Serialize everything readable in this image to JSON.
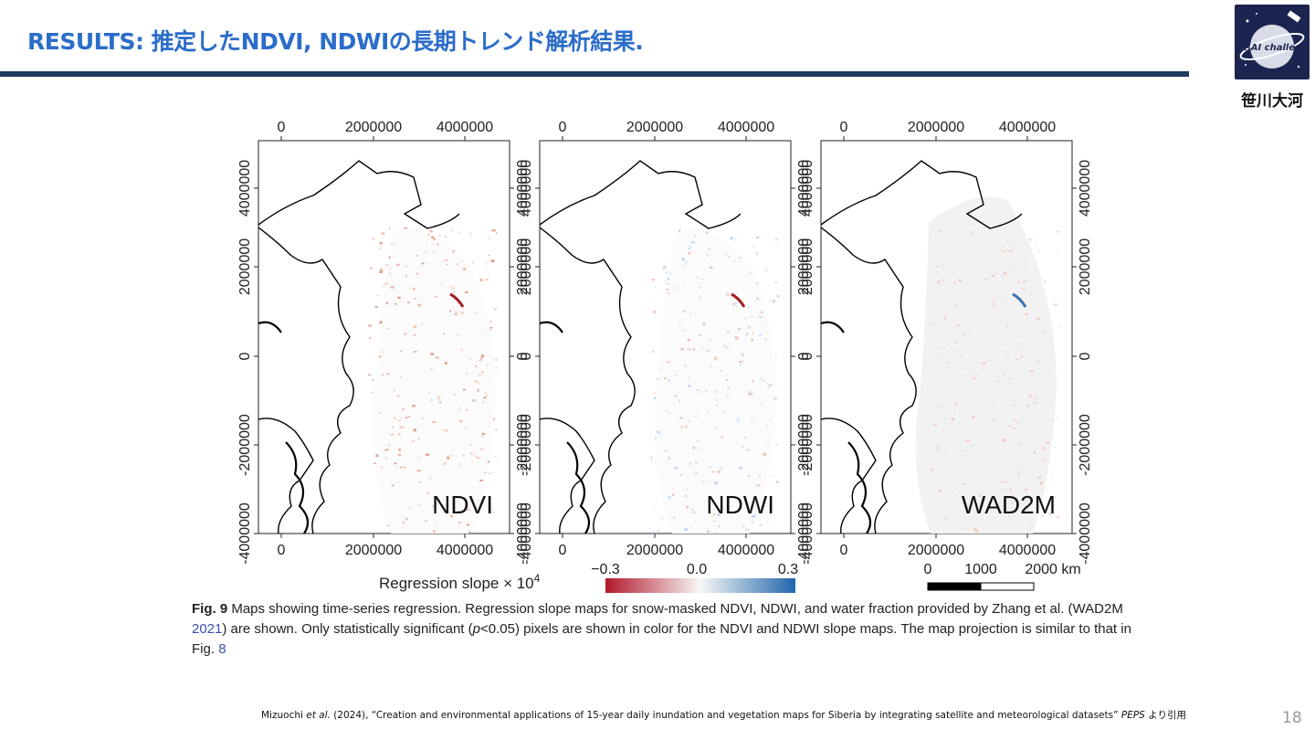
{
  "slide": {
    "title": "RESULTS: 推定したNDVI, NDWIの長期トレンド解析結果.",
    "author": "笹川大河",
    "logo_text": "Sat-AI challenge",
    "page_number": "18"
  },
  "figure": {
    "panels": [
      {
        "label": "NDVI"
      },
      {
        "label": "NDWI"
      },
      {
        "label": "WAD2M"
      }
    ],
    "x_ticks": [
      "0",
      "2000000",
      "4000000"
    ],
    "y_ticks": [
      "4000000",
      "2000000",
      "0",
      "-2000000",
      "-4000000"
    ],
    "colorbar": {
      "title": "Regression slope × 10",
      "exponent": "4",
      "min": "−0.3",
      "mid": "0.0",
      "max": "0.3",
      "colors": [
        "#b2182b",
        "#f7f7f7",
        "#2166ac"
      ]
    },
    "scalebar": {
      "ticks": [
        "0",
        "1000",
        "2000 km"
      ]
    }
  },
  "caption": {
    "fig_label": "Fig. 9",
    "text_1": "  Maps showing time-series regression. Regression slope maps for snow-masked NDVI, NDWI, and water fraction provided by Zhang et al. (WAD2M ",
    "ref_1": "2021",
    "text_2": ") are shown. Only statistically significant (",
    "p_var": "p",
    "text_3": "<0.05) pixels are shown in color for the NDVI and NDWI slope maps. The map projection is similar to that in Fig. ",
    "ref_2": "8"
  },
  "citation": {
    "authors": "Mizuochi ",
    "etal": "et al.",
    "text": " (2024), “Creation and environmental applications of 15-year daily inundation and vegetation maps for Siberia by integrating satellite and meteorological datasets”",
    "journal": "PEPS",
    "suffix": " より引用"
  }
}
